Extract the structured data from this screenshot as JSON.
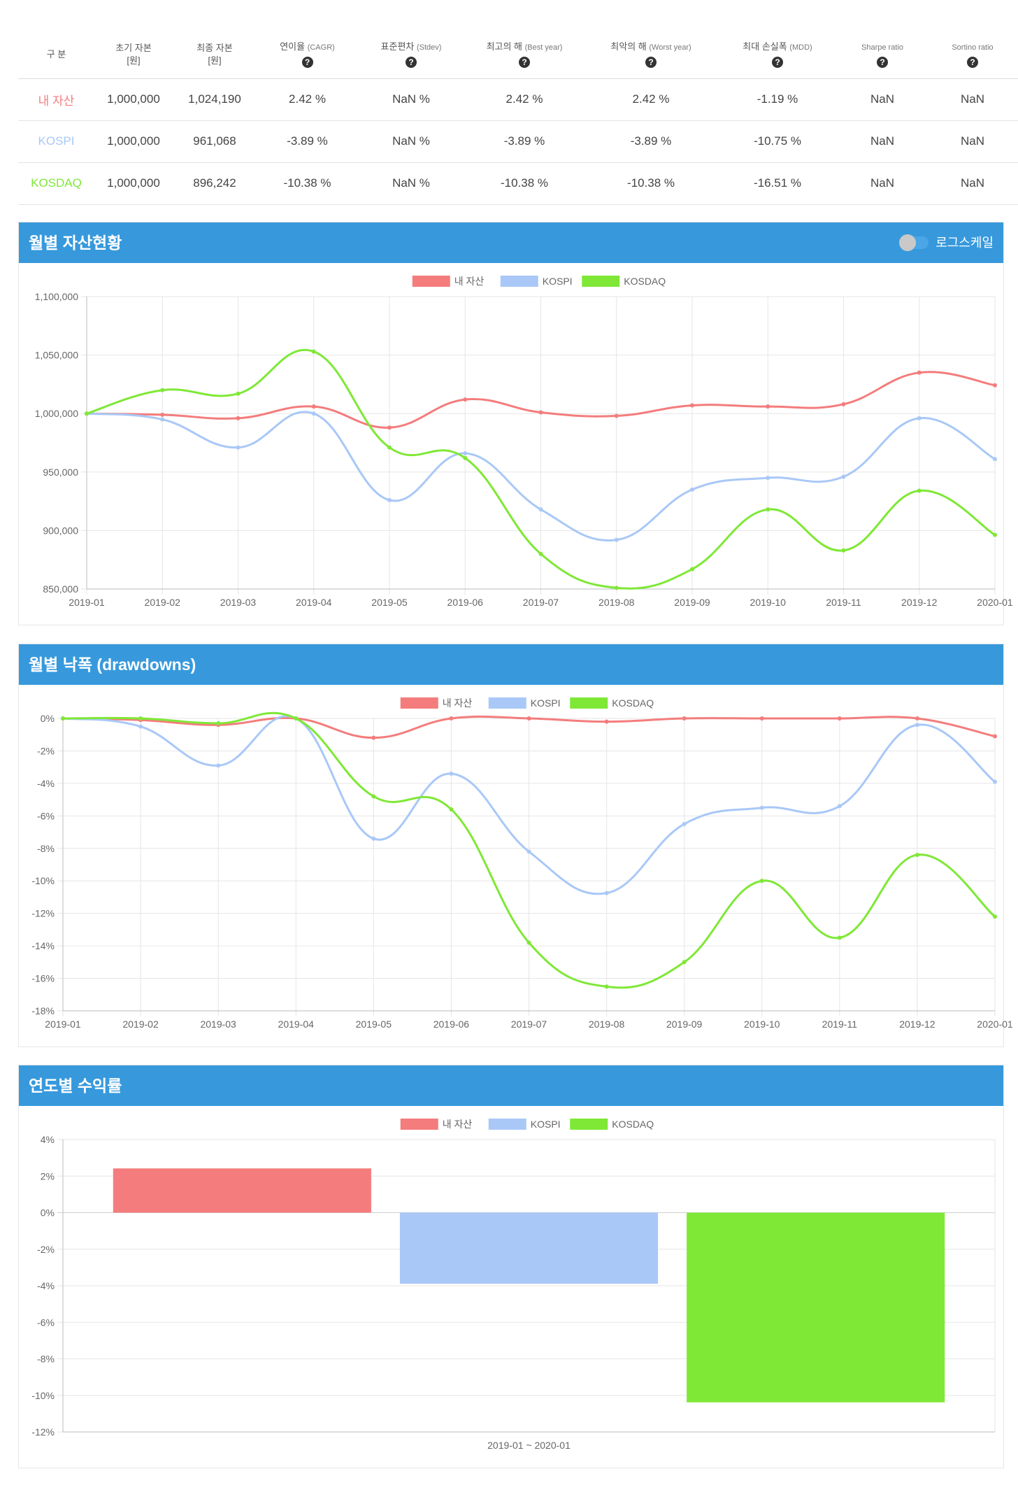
{
  "table": {
    "headers": [
      {
        "label": "구 분",
        "sub": "",
        "help": false
      },
      {
        "label": "초기 자본",
        "sub": "[원]",
        "help": false
      },
      {
        "label": "최종 자본",
        "sub": "[원]",
        "help": false
      },
      {
        "label": "연이율",
        "sub": "",
        "paren": "(CAGR)",
        "help": true
      },
      {
        "label": "표준편차",
        "sub": "",
        "paren": "(Stdev)",
        "help": true
      },
      {
        "label": "최고의 해",
        "sub": "",
        "paren": "(Best year)",
        "help": true
      },
      {
        "label": "최악의 해",
        "sub": "",
        "paren": "(Worst year)",
        "help": true
      },
      {
        "label": "최대 손실폭",
        "sub": "",
        "paren": "(MDD)",
        "help": true
      },
      {
        "label": "Sharpe ratio",
        "sub": "",
        "paren": "",
        "help": true
      },
      {
        "label": "Sortino ratio",
        "sub": "",
        "paren": "",
        "help": true
      }
    ],
    "help_icon": "?",
    "rows": [
      {
        "name": "내 자산",
        "color": "#f47c7c",
        "cells": [
          "1,000,000",
          "1,024,190",
          "2.42 %",
          "NaN %",
          "2.42 %",
          "2.42 %",
          "-1.19 %",
          "NaN",
          "NaN"
        ]
      },
      {
        "name": "KOSPI",
        "color": "#a9c8f7",
        "cells": [
          "1,000,000",
          "961,068",
          "-3.89 %",
          "NaN %",
          "-3.89 %",
          "-3.89 %",
          "-10.75 %",
          "NaN",
          "NaN"
        ]
      },
      {
        "name": "KOSDAQ",
        "color": "#7fe836",
        "cells": [
          "1,000,000",
          "896,242",
          "-10.38 %",
          "NaN %",
          "-10.38 %",
          "-10.38 %",
          "-16.51 %",
          "NaN",
          "NaN"
        ]
      }
    ]
  },
  "panels": {
    "monthly": {
      "title": "월별 자산현황",
      "toggle_label": "로그스케일"
    },
    "drawdown": {
      "title": "월별 낙폭 (drawdowns)"
    },
    "yearly": {
      "title": "연도별 수익률"
    }
  },
  "chart_data": [
    {
      "type": "line",
      "title": "월별 자산현황",
      "x": [
        "2019-01",
        "2019-02",
        "2019-03",
        "2019-04",
        "2019-05",
        "2019-06",
        "2019-07",
        "2019-08",
        "2019-09",
        "2019-10",
        "2019-11",
        "2019-12",
        "2020-01"
      ],
      "ylim": [
        850000,
        1100000
      ],
      "yticks": [
        850000,
        900000,
        950000,
        1000000,
        1050000,
        1100000
      ],
      "ytick_labels": [
        "850,000",
        "900,000",
        "950,000",
        "1,000,000",
        "1,050,000",
        "1,100,000"
      ],
      "legend": "top",
      "series": [
        {
          "name": "내 자산",
          "color": "#f47c7c",
          "values": [
            1000000,
            999000,
            996000,
            1006000,
            988000,
            1012000,
            1001000,
            998000,
            1007000,
            1006000,
            1008000,
            1035000,
            1024190
          ]
        },
        {
          "name": "KOSPI",
          "color": "#a9c8f7",
          "values": [
            1000000,
            995000,
            971000,
            1000000,
            926000,
            966000,
            918000,
            892000,
            935000,
            945000,
            946000,
            996000,
            961068
          ]
        },
        {
          "name": "KOSDAQ",
          "color": "#7fe836",
          "values": [
            1000000,
            1020000,
            1017000,
            1053000,
            971000,
            962000,
            880000,
            851000,
            867000,
            918000,
            883000,
            934000,
            896242
          ]
        }
      ]
    },
    {
      "type": "line",
      "title": "월별 낙폭 (drawdowns)",
      "x": [
        "2019-01",
        "2019-02",
        "2019-03",
        "2019-04",
        "2019-05",
        "2019-06",
        "2019-07",
        "2019-08",
        "2019-09",
        "2019-10",
        "2019-11",
        "2019-12",
        "2020-01"
      ],
      "ylim": [
        -18,
        0
      ],
      "yticks": [
        0,
        -2,
        -4,
        -6,
        -8,
        -10,
        -12,
        -14,
        -16,
        -18
      ],
      "ytick_labels": [
        "0%",
        "-2%",
        "-4%",
        "-6%",
        "-8%",
        "-10%",
        "-12%",
        "-14%",
        "-16%",
        "-18%"
      ],
      "legend": "top",
      "series": [
        {
          "name": "내 자산",
          "color": "#f47c7c",
          "values": [
            0,
            -0.1,
            -0.4,
            0,
            -1.19,
            0,
            0,
            -0.2,
            0,
            0,
            0,
            0,
            -1.1
          ]
        },
        {
          "name": "KOSPI",
          "color": "#a9c8f7",
          "values": [
            0,
            -0.5,
            -2.9,
            0,
            -7.4,
            -3.4,
            -8.2,
            -10.75,
            -6.5,
            -5.5,
            -5.4,
            -0.4,
            -3.9
          ]
        },
        {
          "name": "KOSDAQ",
          "color": "#7fe836",
          "values": [
            0,
            0,
            -0.3,
            0,
            -4.8,
            -5.6,
            -13.8,
            -16.51,
            -15.0,
            -10.0,
            -13.5,
            -8.4,
            -12.2
          ]
        }
      ]
    },
    {
      "type": "bar",
      "title": "연도별 수익률",
      "categories": [
        "2019-01 ~ 2020-01"
      ],
      "ylim": [
        -12,
        4
      ],
      "yticks": [
        4,
        2,
        0,
        -2,
        -4,
        -6,
        -8,
        -10,
        -12
      ],
      "ytick_labels": [
        "4%",
        "2%",
        "0%",
        "-2%",
        "-4%",
        "-6%",
        "-8%",
        "-10%",
        "-12%"
      ],
      "legend": "top",
      "series": [
        {
          "name": "내 자산",
          "color": "#f47c7c",
          "values": [
            2.42
          ]
        },
        {
          "name": "KOSPI",
          "color": "#a9c8f7",
          "values": [
            -3.89
          ]
        },
        {
          "name": "KOSDAQ",
          "color": "#7fe836",
          "values": [
            -10.38
          ]
        }
      ]
    }
  ]
}
